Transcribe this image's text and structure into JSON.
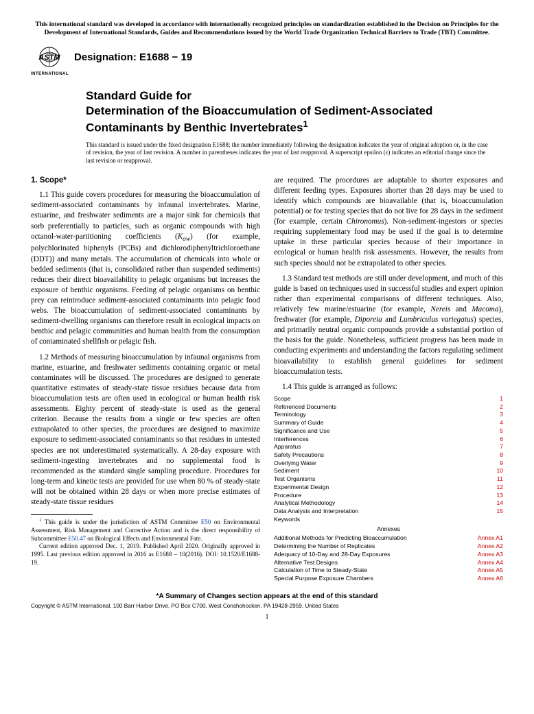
{
  "top_notice": "This international standard was developed in accordance with internationally recognized principles on standardization established in the Decision on Principles for the Development of International Standards, Guides and Recommendations issued by the World Trade Organization Technical Barriers to Trade (TBT) Committee.",
  "logo_sub": "INTERNATIONAL",
  "designation": "Designation: E1688 − 19",
  "title_line1": "Standard Guide for",
  "title_line2": "Determination of the Bioaccumulation of Sediment-Associated Contaminants by Benthic Invertebrates",
  "title_sup": "1",
  "issued_note": "This standard is issued under the fixed designation E1688; the number immediately following the designation indicates the year of original adoption or, in the case of revision, the year of last revision. A number in parentheses indicates the year of last reapproval. A superscript epsilon (ε) indicates an editorial change since the last revision or reapproval.",
  "scope_head": "1. Scope*",
  "para_1_1_a": "1.1 This guide covers procedures for measuring the bioaccumulation of sediment-associated contaminants by infaunal invertebrates. Marine, estuarine, and freshwater sediments are a major sink for chemicals that sorb preferentially to particles, such as organic compounds with high octanol-water-partitioning coefficients (",
  "kow": "K",
  "kow_sub": "ow",
  "para_1_1_b": ") (for example, polychlorinated biphenyls (PCBs) and dichlorodiphenyltrichloroethane (DDT)) and many metals. The accumulation of chemicals into whole or bedded sediments (that is, consolidated rather than suspended sediments) reduces their direct bioavailability to pelagic organisms but increases the exposure of benthic organisms. Feeding of pelagic organisms on benthic prey can reintroduce sediment-associated contaminants into pelagic food webs. The bioaccumulation of sediment-associated contaminants by sediment-dwelling organisms can therefore result in ecological impacts on benthic and pelagic communities and human health from the consumption of contaminated shellfish or pelagic fish.",
  "para_1_2": "1.2 Methods of measuring bioaccumulation by infaunal organisms from marine, estuarine, and freshwater sediments containing organic or metal contaminates will be discussed. The procedures are designed to generate quantitative estimates of steady-state tissue residues because data from bioaccumulation tests are often used in ecological or human health risk assessments. Eighty percent of steady-state is used as the general criterion. Because the results from a single or few species are often extrapolated to other species, the procedures are designed to maximize exposure to sediment-associated contaminants so that residues in untested species are not underestimated systematically. A 28-day exposure with sediment-ingesting invertebrates and no supplemental food is recommended as the standard single sampling procedure. Procedures for long-term and kinetic tests are provided for use when 80 % of steady-state will not be obtained within 28 days or when more precise estimates of steady-state tissue residues",
  "para_1_2_cont_a": "are required. The procedures are adaptable to shorter exposures and different feeding types. Exposures shorter than 28 days may be used to identify which compounds are bioavailable (that is, bioaccumulation potential) or for testing species that do not live for 28 days in the sediment (for example, certain ",
  "chironomus": "Chironomus",
  "para_1_2_cont_b": "). Non-sediment-ingestors or species requiring supplementary food may be used if the goal is to determine uptake in these particular species because of their importance in ecological or human health risk assessments. However, the results from such species should not be extrapolated to other species.",
  "para_1_3_a": "1.3 Standard test methods are still under development, and much of this guide is based on techniques used in successful studies and expert opinion rather than experimental comparisons of different techniques. Also, relatively few marine/estuarine (for example, ",
  "nereis": "Nereis",
  "and1": " and ",
  "macoma": "Macoma",
  "para_1_3_b": "), freshwater (for example, ",
  "diporeia": "Diporeia",
  "and2": " and ",
  "lumbriculus": "Lumbriculus variegatus",
  "para_1_3_c": ") species, and primarily neutral organic compounds provide a substantial portion of the basis for the guide. Nonetheless, sufficient progress has been made in conducting experiments and understanding the factors regulating sediment bioavailability to establish general guidelines for sediment bioaccumulation tests.",
  "para_1_4": "1.4 This guide is arranged as follows:",
  "toc": [
    {
      "label": "Scope",
      "num": "1"
    },
    {
      "label": "Referenced Documents",
      "num": "2"
    },
    {
      "label": "Terminology",
      "num": "3"
    },
    {
      "label": "Summary of Guide",
      "num": "4"
    },
    {
      "label": "Significance and Use",
      "num": "5"
    },
    {
      "label": "Interferences",
      "num": "6"
    },
    {
      "label": "Apparatus",
      "num": "7"
    },
    {
      "label": "Safety Precautions",
      "num": "8"
    },
    {
      "label": "Overlying Water",
      "num": "9"
    },
    {
      "label": "Sediment",
      "num": "10"
    },
    {
      "label": "Test Organisms",
      "num": "11"
    },
    {
      "label": "Experimental Design",
      "num": "12"
    },
    {
      "label": "Procedure",
      "num": "13"
    },
    {
      "label": "Analytical Methodology",
      "num": "14"
    },
    {
      "label": "Data Analysis and Interpretation",
      "num": "15"
    },
    {
      "label": "Keywords",
      "num": ""
    }
  ],
  "annex_head": "Annexes",
  "annexes": [
    {
      "label": "Additional Methods for Predicting Bioaccumulation",
      "num": "Annex A1"
    },
    {
      "label": "Determining the Number of Replicates",
      "num": "Annex A2"
    },
    {
      "label": "Adequacy of 10-Day and 28-Day Exposures",
      "num": "Annex A3"
    },
    {
      "label": "Alternative Test Designs",
      "num": "Annex A4"
    },
    {
      "label": "Calculation of Time to Steady-State",
      "num": "Annex A5"
    },
    {
      "label": "Special Purpose Exposure Chambers",
      "num": "Annex A6"
    }
  ],
  "footnote_a": " This guide is under the jurisdiction of ASTM Committee ",
  "fn_link1": "E50",
  "footnote_b": " on Environmental Assessment, Risk Management and Corrective Action and is the direct responsibility of Subcommittee ",
  "fn_link2": "E50.47",
  "footnote_c": " on Biological Effects and Environmental Fate.",
  "footnote_d": "Current edition approved Dec. 1, 2019. Published April 2020. Originally approved in 1995. Last previous edition approved in 2016 as E1688 – 10(2016). DOI: 10.1520/E1688-19.",
  "changes_note": "*A Summary of Changes section appears at the end of this standard",
  "copyright": "Copyright © ASTM International, 100 Barr Harbor Drive, PO Box C700, West Conshohocken, PA 19428-2959. United States",
  "pagenum": "1"
}
